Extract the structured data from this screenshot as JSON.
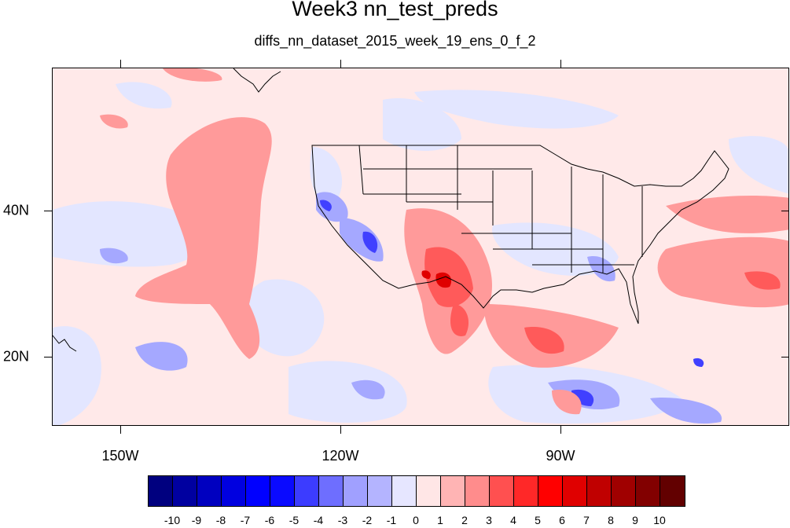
{
  "title": "Week3 nn_test_preds",
  "subtitle": "diffs_nn_dataset_2015_week_19_ens_0_f_2",
  "map": {
    "x_labels": [
      "150W",
      "120W",
      "90W"
    ],
    "y_labels": [
      "40N",
      "20N"
    ],
    "lon_range": [
      -159,
      -60
    ],
    "lat_range": [
      11,
      60
    ]
  },
  "colorbar": {
    "labels": [
      "-10",
      "-9",
      "-8",
      "-7",
      "-6",
      "-5",
      "-4",
      "-3",
      "-2",
      "-1",
      "0",
      "1",
      "2",
      "3",
      "4",
      "5",
      "6",
      "7",
      "8",
      "9",
      "10"
    ],
    "colors": [
      "#00007f",
      "#0000a0",
      "#0000c0",
      "#0000e0",
      "#0000ff",
      "#0a0aff",
      "#3c3cff",
      "#6e6eff",
      "#a0a0ff",
      "#b4b4ff",
      "#e6e6ff",
      "#ffe6e6",
      "#ffb4b4",
      "#ff8c8c",
      "#ff5050",
      "#ff2828",
      "#ff0000",
      "#e00000",
      "#c00000",
      "#a00000",
      "#820000",
      "#620000"
    ]
  }
}
